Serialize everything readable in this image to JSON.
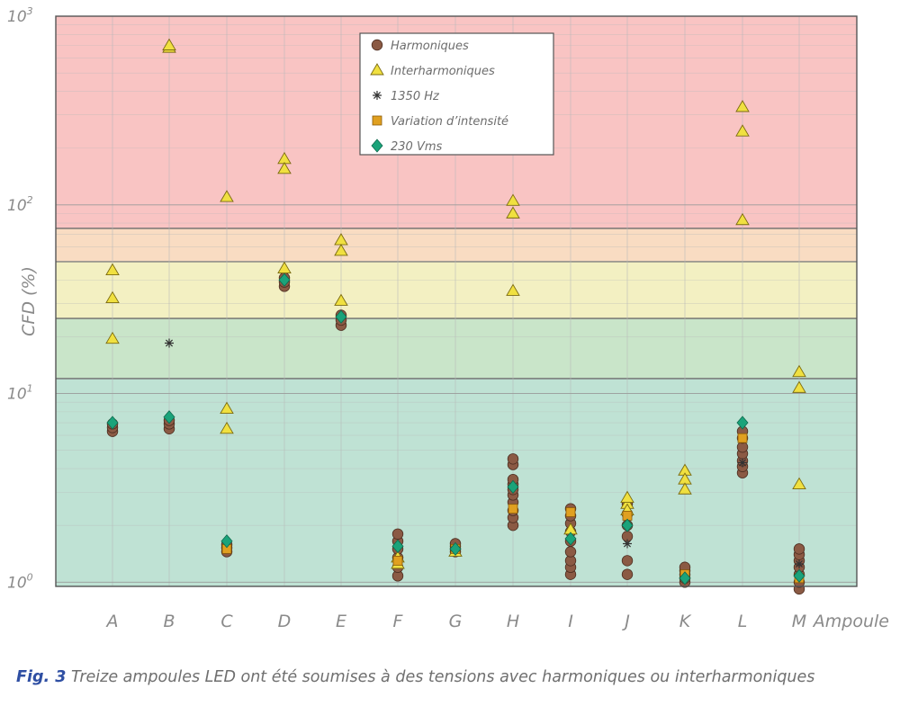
{
  "colors": {
    "zone_red": "#f9c4c3",
    "zone_orange": "#f9dcc2",
    "zone_yellow": "#f3f0c2",
    "zone_green_light": "#c9e5c9",
    "zone_green": "#bfe2d4",
    "harmoniques": "#8b5a44",
    "interharmoniques": "#f0e040",
    "variation": "#e0a020",
    "v230": "#1ba37a",
    "star": "#333333",
    "grid": "#b8b8b8",
    "axis_text": "#8a8a8a",
    "caption_bold": "#2f4fa3"
  },
  "chart_data": {
    "type": "scatter",
    "title": "",
    "xlabel": "Ampoule",
    "ylabel": "CFD (%)",
    "yscale": "log",
    "ylim": [
      0.95,
      1000
    ],
    "y_ticks": [
      {
        "value": 1,
        "base": "10",
        "exp": "0"
      },
      {
        "value": 10,
        "base": "10",
        "exp": "1"
      },
      {
        "value": 100,
        "base": "10",
        "exp": "2"
      },
      {
        "value": 1000,
        "base": "10",
        "exp": "3"
      }
    ],
    "categories": [
      "A",
      "B",
      "C",
      "D",
      "E",
      "F",
      "G",
      "H",
      "I",
      "J",
      "K",
      "L",
      "M"
    ],
    "zones": [
      {
        "name": "red",
        "from": 75,
        "to": 1000,
        "color": "#f9c4c3"
      },
      {
        "name": "orange",
        "from": 50,
        "to": 75,
        "color": "#f9dcc2"
      },
      {
        "name": "yellow",
        "from": 25,
        "to": 50,
        "color": "#f3f0c2"
      },
      {
        "name": "green-light",
        "from": 12,
        "to": 25,
        "color": "#c9e5c9"
      },
      {
        "name": "green",
        "from": 0.95,
        "to": 12,
        "color": "#bfe2d4"
      }
    ],
    "series": [
      {
        "name": "Harmoniques",
        "marker": "circle",
        "points": [
          [
            "A",
            6.3
          ],
          [
            "A",
            6.6
          ],
          [
            "A",
            6.9
          ],
          [
            "B",
            6.5
          ],
          [
            "B",
            6.9
          ],
          [
            "B",
            7.2
          ],
          [
            "C",
            1.45
          ],
          [
            "C",
            1.52
          ],
          [
            "C",
            1.58
          ],
          [
            "D",
            37
          ],
          [
            "D",
            39
          ],
          [
            "D",
            41
          ],
          [
            "E",
            23
          ],
          [
            "E",
            24.5
          ],
          [
            "E",
            26
          ],
          [
            "F",
            1.08
          ],
          [
            "F",
            1.2
          ],
          [
            "F",
            1.35
          ],
          [
            "F",
            1.5
          ],
          [
            "F",
            1.65
          ],
          [
            "F",
            1.8
          ],
          [
            "G",
            1.45
          ],
          [
            "G",
            1.5
          ],
          [
            "G",
            1.55
          ],
          [
            "G",
            1.6
          ],
          [
            "H",
            2.0
          ],
          [
            "H",
            2.2
          ],
          [
            "H",
            2.4
          ],
          [
            "H",
            2.65
          ],
          [
            "H",
            2.9
          ],
          [
            "H",
            3.1
          ],
          [
            "H",
            3.3
          ],
          [
            "H",
            3.5
          ],
          [
            "H",
            4.2
          ],
          [
            "H",
            4.5
          ],
          [
            "I",
            1.1
          ],
          [
            "I",
            1.2
          ],
          [
            "I",
            1.3
          ],
          [
            "I",
            1.45
          ],
          [
            "I",
            1.65
          ],
          [
            "I",
            1.85
          ],
          [
            "I",
            2.05
          ],
          [
            "I",
            2.25
          ],
          [
            "I",
            2.45
          ],
          [
            "J",
            1.1
          ],
          [
            "J",
            1.3
          ],
          [
            "J",
            1.75
          ],
          [
            "J",
            2.0
          ],
          [
            "J",
            2.3
          ],
          [
            "J",
            2.6
          ],
          [
            "K",
            1.0
          ],
          [
            "K",
            1.05
          ],
          [
            "K",
            1.1
          ],
          [
            "K",
            1.15
          ],
          [
            "K",
            1.2
          ],
          [
            "L",
            3.8
          ],
          [
            "L",
            4.1
          ],
          [
            "L",
            4.4
          ],
          [
            "L",
            4.8
          ],
          [
            "L",
            5.2
          ],
          [
            "L",
            5.8
          ],
          [
            "L",
            6.3
          ],
          [
            "M",
            0.92
          ],
          [
            "M",
            1.0
          ],
          [
            "M",
            1.1
          ],
          [
            "M",
            1.2
          ],
          [
            "M",
            1.3
          ],
          [
            "M",
            1.4
          ],
          [
            "M",
            1.5
          ]
        ]
      },
      {
        "name": "Interharmoniques",
        "marker": "triangle",
        "points": [
          [
            "A",
            19.5
          ],
          [
            "A",
            32
          ],
          [
            "A",
            45
          ],
          [
            "B",
            680
          ],
          [
            "B",
            700
          ],
          [
            "C",
            110
          ],
          [
            "C",
            6.5
          ],
          [
            "C",
            8.3
          ],
          [
            "D",
            175
          ],
          [
            "D",
            155
          ],
          [
            "D",
            46
          ],
          [
            "E",
            65
          ],
          [
            "E",
            57
          ],
          [
            "E",
            31
          ],
          [
            "F",
            1.25
          ],
          [
            "F",
            1.35
          ],
          [
            "G",
            1.45
          ],
          [
            "H",
            105
          ],
          [
            "H",
            90
          ],
          [
            "H",
            35
          ],
          [
            "I",
            1.9
          ],
          [
            "J",
            2.6
          ],
          [
            "J",
            2.8
          ],
          [
            "J",
            2.4
          ],
          [
            "K",
            3.9
          ],
          [
            "K",
            3.5
          ],
          [
            "K",
            3.1
          ],
          [
            "L",
            330
          ],
          [
            "L",
            245
          ],
          [
            "L",
            83
          ],
          [
            "M",
            13
          ],
          [
            "M",
            10.7
          ],
          [
            "M",
            3.3
          ]
        ]
      },
      {
        "name": "1350 Hz",
        "marker": "star",
        "points": [
          [
            "B",
            18.5
          ],
          [
            "J",
            1.6
          ],
          [
            "L",
            4.3
          ],
          [
            "M",
            1.25
          ]
        ]
      },
      {
        "name": "Variation d’intensité",
        "marker": "square",
        "points": [
          [
            "C",
            1.5
          ],
          [
            "F",
            1.3
          ],
          [
            "G",
            1.5
          ],
          [
            "H",
            2.45
          ],
          [
            "I",
            2.35
          ],
          [
            "J",
            2.25
          ],
          [
            "K",
            1.1
          ],
          [
            "L",
            5.8
          ],
          [
            "M",
            1.05
          ]
        ]
      },
      {
        "name": "230 Vms",
        "marker": "diamond",
        "points": [
          [
            "A",
            7.0
          ],
          [
            "B",
            7.5
          ],
          [
            "C",
            1.65
          ],
          [
            "D",
            40
          ],
          [
            "E",
            25.5
          ],
          [
            "F",
            1.55
          ],
          [
            "G",
            1.5
          ],
          [
            "H",
            3.2
          ],
          [
            "I",
            1.7
          ],
          [
            "J",
            2.0
          ],
          [
            "K",
            1.05
          ],
          [
            "L",
            7.0
          ],
          [
            "M",
            1.08
          ]
        ]
      }
    ]
  },
  "caption": {
    "fig_label": "Fig. 3",
    "text": "Treize ampoules LED ont été soumises à des tensions avec harmoniques ou interharmoniques"
  }
}
